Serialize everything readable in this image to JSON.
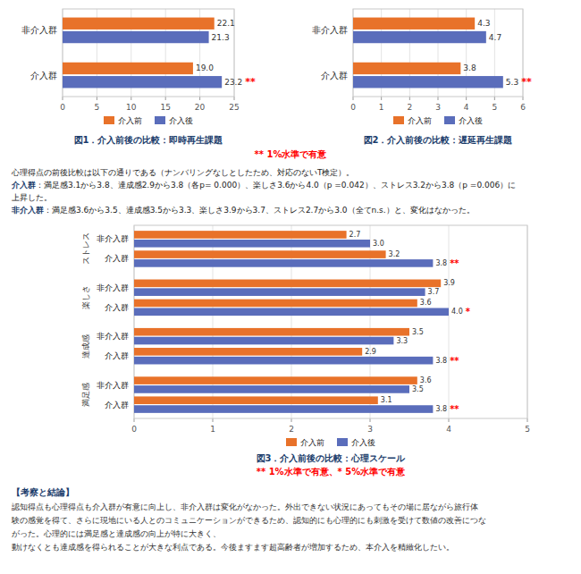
{
  "chart_data": [
    {
      "type": "bar",
      "orientation": "horizontal",
      "title": "図1．介入前後の比較：即時再生課題",
      "categories": [
        "非介入群",
        "介入群"
      ],
      "series": [
        {
          "name": "介入前",
          "color": "#e8722a",
          "values": [
            22.1,
            19.0
          ],
          "value_labels": [
            "22.1",
            "19.0"
          ]
        },
        {
          "name": "介入後",
          "color": "#5a6dbb",
          "values": [
            21.3,
            23.2
          ],
          "value_labels": [
            "21.3",
            "23.2"
          ]
        }
      ],
      "xlim": [
        0,
        25
      ],
      "xticks": [
        0,
        5,
        10,
        15,
        20,
        25
      ],
      "grid": true,
      "legend": "bottom",
      "data_labels": true,
      "annotations": [
        {
          "text": "**",
          "series": 1,
          "index": 1
        }
      ]
    },
    {
      "type": "bar",
      "orientation": "horizontal",
      "title": "図2．介入前後の比較：遅延再生課題",
      "categories": [
        "非介入群",
        "介入群"
      ],
      "series": [
        {
          "name": "介入前",
          "color": "#e8722a",
          "values": [
            4.3,
            3.8
          ],
          "value_labels": [
            "4.3",
            "3.8"
          ]
        },
        {
          "name": "介入後",
          "color": "#5a6dbb",
          "values": [
            4.7,
            5.3
          ],
          "value_labels": [
            "4.7",
            "5.3"
          ]
        }
      ],
      "xlim": [
        0,
        6
      ],
      "xticks": [
        0,
        1,
        2,
        3,
        4,
        5,
        6
      ],
      "grid": true,
      "legend": "bottom",
      "data_labels": true,
      "annotations": [
        {
          "text": "**",
          "series": 1,
          "index": 1
        }
      ]
    },
    {
      "type": "bar",
      "orientation": "horizontal",
      "title": "図3．介入前後の比較：心理スケール",
      "subtitle": "** 1%水準で有意、* 5%水準で有意",
      "categories": [
        "非介入群",
        "介入群",
        "非介入群",
        "介入群",
        "非介入群",
        "介入群",
        "非介入群",
        "介入群"
      ],
      "category_groups": [
        "ストレス",
        "楽しさ",
        "達成感",
        "満足感"
      ],
      "series": [
        {
          "name": "介入前",
          "color": "#e8722a",
          "values": [
            2.7,
            3.2,
            3.9,
            3.6,
            3.5,
            2.9,
            3.6,
            3.1
          ],
          "value_labels": [
            "2.7",
            "3.2",
            "3.9",
            "3.6",
            "3.5",
            "2.9",
            "3.6",
            "3.1"
          ]
        },
        {
          "name": "介入後",
          "color": "#5a6dbb",
          "values": [
            3.0,
            3.8,
            3.7,
            4.0,
            3.3,
            3.8,
            3.5,
            3.8
          ],
          "value_labels": [
            "3.0",
            "3.8",
            "3.7",
            "4.0",
            "3.3",
            "3.8",
            "3.5",
            "3.8"
          ]
        }
      ],
      "xlim": [
        0,
        5
      ],
      "xticks": [
        0,
        1,
        2,
        3,
        4,
        5
      ],
      "grid": true,
      "legend": "bottom",
      "data_labels": true,
      "annotations": [
        {
          "text": "**",
          "series": 1,
          "index": 1
        },
        {
          "text": "*",
          "series": 1,
          "index": 3
        },
        {
          "text": "**",
          "series": 1,
          "index": 5
        },
        {
          "text": "**",
          "series": 1,
          "index": 7
        }
      ]
    }
  ],
  "notes": {
    "sig_note": "** 1%水準で有意",
    "text_lines": [
      {
        "text": "心理得点の前後比較は以下の通りである（ナンバリングなしとしたため、対応のないT検定）。"
      },
      {
        "lead": "介入群",
        "text": "：満足感3.1から3.8、達成感2.9から3.8（各p= 0.000）、楽しさ3.6から4.0（p =0.042）、ストレス3.2から3.8（p =0.006）に"
      },
      {
        "text": "上昇した。"
      },
      {
        "lead": "非介入群",
        "text": "：満足感3.6から3.5、達成感3.5から3.3、楽しさ3.9から3.7、ストレス2.7から3.0（全てn.s.）と、変化はなかった。"
      }
    ],
    "conclusion_title": "【考察と結論】",
    "conclusion_lines": [
      "認知得点も心理得点も介入群が有意に向上し、非介入群は変化がなかった。外出できない状況にあってもその場に居ながら旅行体",
      "験の感覚を得て、さらに現地にいる人とのコミュニケーションができるため、認知的にも心理的にも刺激を受けて数値の改善につな",
      "がった。心理的には満足感と達成感の向上が特に大きく、",
      "動けなくとも達成感を得られることが大きな利点である。今後ますます超高齢者が増加するため、本介入を精緻化したい。"
    ]
  }
}
